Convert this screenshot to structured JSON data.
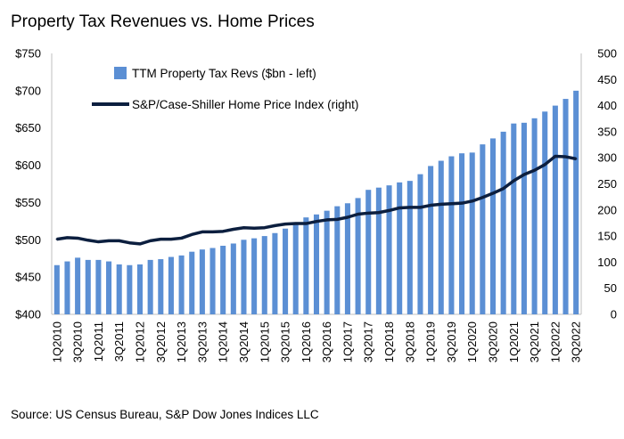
{
  "chart_data": {
    "type": "bar",
    "title": "Property Tax Revenues vs. Home Prices",
    "source": "Source: US Census Bureau, S&P Dow Jones Indices LLC",
    "categories": [
      "1Q2010",
      "2Q2010",
      "3Q2010",
      "4Q2010",
      "1Q2011",
      "2Q2011",
      "3Q2011",
      "4Q2011",
      "1Q2012",
      "2Q2012",
      "3Q2012",
      "4Q2012",
      "1Q2013",
      "2Q2013",
      "3Q2013",
      "4Q2013",
      "1Q2014",
      "2Q2014",
      "3Q2014",
      "4Q2014",
      "1Q2015",
      "2Q2015",
      "3Q2015",
      "4Q2015",
      "1Q2016",
      "2Q2016",
      "3Q2016",
      "4Q2016",
      "1Q2017",
      "2Q2017",
      "3Q2017",
      "4Q2017",
      "1Q2018",
      "2Q2018",
      "3Q2018",
      "4Q2018",
      "1Q2019",
      "2Q2019",
      "3Q2019",
      "4Q2019",
      "1Q2020",
      "2Q2020",
      "3Q2020",
      "4Q2020",
      "1Q2021",
      "2Q2021",
      "3Q2021",
      "4Q2021",
      "1Q2022",
      "2Q2022",
      "3Q2022"
    ],
    "x_tick_labels": [
      "1Q2010",
      "3Q2010",
      "1Q2011",
      "3Q2011",
      "1Q2012",
      "3Q2012",
      "1Q2013",
      "3Q2013",
      "1Q2014",
      "3Q2014",
      "1Q2015",
      "3Q2015",
      "1Q2016",
      "3Q2016",
      "1Q2017",
      "3Q2017",
      "1Q2018",
      "3Q2018",
      "1Q2019",
      "3Q2019",
      "1Q2020",
      "3Q2020",
      "1Q2021",
      "3Q2021",
      "1Q2022",
      "3Q2022"
    ],
    "y_left": {
      "ylim": [
        400,
        750
      ],
      "ticks": [
        400,
        450,
        500,
        550,
        600,
        650,
        700,
        750
      ],
      "tick_labels": [
        "$400",
        "$450",
        "$500",
        "$550",
        "$600",
        "$650",
        "$700",
        "$750"
      ]
    },
    "y_right": {
      "ylim": [
        0,
        500
      ],
      "ticks": [
        0,
        50,
        100,
        150,
        200,
        250,
        300,
        350,
        400,
        450,
        500
      ],
      "tick_labels": [
        "0",
        "50",
        "100",
        "150",
        "200",
        "250",
        "300",
        "350",
        "400",
        "450",
        "500"
      ]
    },
    "series": [
      {
        "name": "TTM Property Tax Revs ($bn - left)",
        "type": "bar",
        "axis": "left",
        "color": "#5b8fd4",
        "values": [
          466,
          471,
          476,
          473,
          473,
          471,
          467,
          466,
          467,
          473,
          474,
          477,
          479,
          484,
          487,
          489,
          492,
          495,
          500,
          502,
          505,
          509,
          515,
          522,
          530,
          534,
          539,
          545,
          549,
          556,
          567,
          570,
          573,
          577,
          579,
          588,
          599,
          606,
          612,
          616,
          617,
          628,
          636,
          645,
          656,
          657,
          663,
          672,
          680,
          689,
          700
        ]
      },
      {
        "name": "S&P/Case-Shiller Home Price Index (right)",
        "type": "line",
        "axis": "right",
        "color": "#0c1f3f",
        "values": [
          144,
          147,
          146,
          142,
          139,
          141,
          141,
          137,
          135,
          141,
          144,
          144,
          146,
          153,
          158,
          158,
          159,
          163,
          166,
          165,
          166,
          170,
          173,
          174,
          174,
          178,
          181,
          182,
          186,
          192,
          194,
          195,
          199,
          204,
          205,
          205,
          209,
          211,
          212,
          213,
          217,
          224,
          232,
          241,
          256,
          268,
          276,
          287,
          303,
          302,
          298
        ]
      }
    ],
    "legend_position": "top-left"
  }
}
